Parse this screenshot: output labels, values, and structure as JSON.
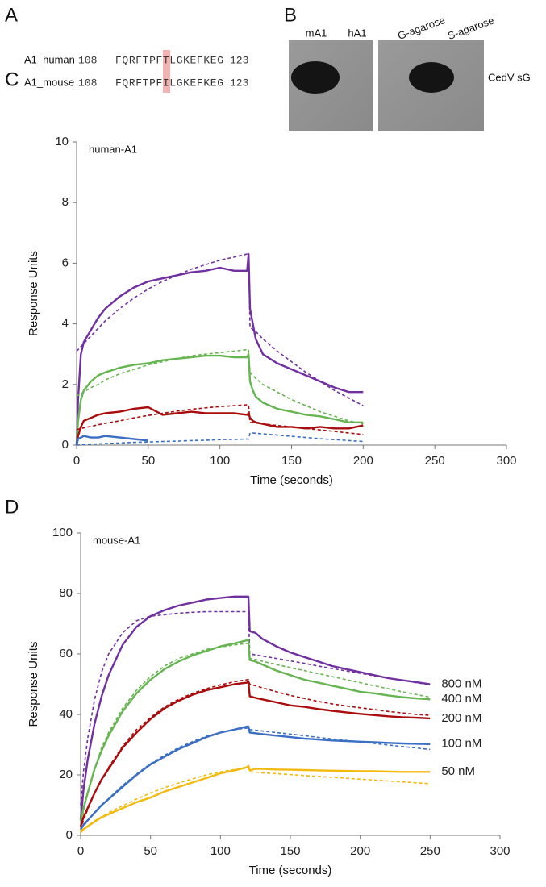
{
  "figure": {
    "panel_a": {
      "label": "A",
      "rows": [
        {
          "name": "A1_human",
          "start": "108",
          "sequence": "FQRFTPFTLGKEFKEG",
          "end": "123"
        },
        {
          "name": "A1_mouse",
          "start": "108",
          "sequence": "FQRFTPFILGKEFKEG",
          "end": "123"
        }
      ]
    },
    "panel_b": {
      "label": "B",
      "lanes": [
        "mA1",
        "hA1",
        "G-agarose",
        "S-agarose"
      ],
      "target": "CedV sG"
    }
  },
  "chart_data": [
    {
      "type": "line",
      "panel_label": "C",
      "annotation": "human-A1",
      "xlabel": "Time (seconds)",
      "ylabel": "Response Units",
      "xlim": [
        0,
        300
      ],
      "ylim": [
        0,
        10
      ],
      "xticks": [
        0,
        50,
        100,
        150,
        200,
        250,
        300
      ],
      "yticks": [
        0,
        2,
        4,
        6,
        8,
        10
      ],
      "x": [
        0,
        1,
        3,
        5,
        10,
        15,
        20,
        30,
        40,
        50,
        60,
        70,
        80,
        90,
        100,
        110,
        119,
        120,
        121,
        123,
        125,
        130,
        140,
        150,
        160,
        170,
        180,
        190,
        200
      ],
      "series": [
        {
          "color": "#7030a0",
          "values": [
            0,
            1.5,
            3.0,
            3.4,
            3.8,
            4.2,
            4.5,
            4.9,
            5.2,
            5.4,
            5.5,
            5.6,
            5.7,
            5.75,
            5.85,
            5.75,
            5.75,
            6.3,
            4.5,
            4.0,
            3.5,
            3.0,
            2.7,
            2.5,
            2.3,
            2.1,
            1.9,
            1.75,
            1.75
          ],
          "fit": [
            3.1,
            3.15,
            3.25,
            3.35,
            3.6,
            3.85,
            4.1,
            4.5,
            4.85,
            5.15,
            5.4,
            5.6,
            5.8,
            5.95,
            6.1,
            6.2,
            6.3,
            6.3,
            3.9,
            3.8,
            3.75,
            3.5,
            3.1,
            2.75,
            2.4,
            2.1,
            1.8,
            1.55,
            1.3
          ]
        },
        {
          "color": "#67b552",
          "values": [
            0,
            0.8,
            1.5,
            1.8,
            2.1,
            2.3,
            2.4,
            2.55,
            2.65,
            2.7,
            2.8,
            2.85,
            2.9,
            2.95,
            2.95,
            2.9,
            2.9,
            3.0,
            2.1,
            1.8,
            1.6,
            1.4,
            1.2,
            1.1,
            1.0,
            0.95,
            0.85,
            0.75,
            0.75
          ],
          "fit": [
            1.6,
            1.65,
            1.7,
            1.75,
            1.9,
            2.0,
            2.15,
            2.35,
            2.5,
            2.65,
            2.75,
            2.85,
            2.95,
            3.0,
            3.05,
            3.1,
            3.15,
            3.15,
            2.4,
            2.3,
            2.2,
            2.0,
            1.75,
            1.5,
            1.3,
            1.1,
            0.95,
            0.8,
            0.7
          ]
        },
        {
          "color": "#a80c0c",
          "values": [
            0,
            0.3,
            0.6,
            0.8,
            0.9,
            1.0,
            1.05,
            1.1,
            1.2,
            1.25,
            1.0,
            1.05,
            1.1,
            1.05,
            1.05,
            1.05,
            1.0,
            1.05,
            0.9,
            0.8,
            0.75,
            0.7,
            0.6,
            0.6,
            0.55,
            0.6,
            0.55,
            0.55,
            0.65
          ],
          "fit": [
            0.5,
            0.52,
            0.55,
            0.57,
            0.62,
            0.67,
            0.72,
            0.8,
            0.9,
            0.98,
            1.05,
            1.12,
            1.18,
            1.23,
            1.27,
            1.3,
            1.33,
            1.33,
            0.75,
            0.74,
            0.73,
            0.7,
            0.65,
            0.6,
            0.55,
            0.5,
            0.45,
            0.4,
            0.35
          ]
        },
        {
          "color": "#3a6fc4",
          "values": [
            0,
            0.2,
            0.25,
            0.3,
            0.25,
            0.25,
            0.3,
            0.25,
            0.2,
            0.15,
            null,
            null,
            null,
            null,
            null,
            null,
            null,
            null,
            null,
            null,
            null,
            null,
            null,
            null,
            null,
            null,
            null,
            null,
            null
          ],
          "fit": [
            0,
            0,
            0.01,
            0.02,
            0.03,
            0.04,
            0.05,
            0.07,
            0.09,
            0.1,
            0.12,
            0.13,
            0.15,
            0.16,
            0.18,
            0.19,
            0.2,
            0.2,
            0.4,
            0.4,
            0.39,
            0.37,
            0.33,
            0.29,
            0.25,
            0.21,
            0.18,
            0.15,
            0.12
          ]
        }
      ]
    },
    {
      "type": "line",
      "panel_label": "D",
      "annotation": "mouse-A1",
      "xlabel": "Time (seconds)",
      "ylabel": "Response Units",
      "xlim": [
        0,
        300
      ],
      "ylim": [
        0,
        100
      ],
      "xticks": [
        0,
        50,
        100,
        150,
        200,
        250,
        300
      ],
      "yticks": [
        0,
        20,
        40,
        60,
        80,
        100
      ],
      "x": [
        0,
        2,
        5,
        10,
        15,
        20,
        30,
        40,
        50,
        60,
        70,
        80,
        90,
        100,
        110,
        119,
        120,
        121,
        125,
        130,
        140,
        150,
        160,
        170,
        180,
        190,
        200,
        210,
        220,
        230,
        240,
        250
      ],
      "series": [
        {
          "name": "800 nM",
          "color": "#7030a0",
          "values": [
            5,
            15,
            25,
            37,
            46,
            53,
            63,
            69,
            72.5,
            74.5,
            76,
            77,
            78,
            78.5,
            79,
            79,
            79,
            67.5,
            67,
            65,
            62.5,
            60.5,
            59,
            57.5,
            56,
            55,
            54,
            53,
            52,
            51.3,
            50.7,
            50
          ],
          "fit": [
            10,
            21,
            32,
            45,
            54,
            60,
            67,
            71,
            72.5,
            73,
            73.5,
            73.8,
            74,
            74,
            74,
            74,
            74,
            60,
            59.7,
            59.3,
            58.5,
            57.7,
            56.9,
            56,
            55.2,
            54.4,
            53.6,
            52.8,
            52,
            51.3,
            50.5,
            49.8
          ]
        },
        {
          "name": "400 nM",
          "color": "#67b552",
          "values": [
            5,
            9,
            14,
            22,
            28,
            33,
            41,
            47,
            51.5,
            55,
            57.5,
            59.5,
            61,
            62.5,
            63.5,
            64.5,
            64.5,
            58,
            57.5,
            56.5,
            54.5,
            53,
            51.5,
            50.5,
            49.5,
            48.5,
            47.5,
            47,
            46.3,
            45.7,
            45.3,
            45
          ],
          "fit": [
            3,
            8,
            14,
            22,
            29,
            34,
            42,
            48,
            52.5,
            56,
            58.5,
            60,
            61.5,
            62.3,
            63,
            63.5,
            63.5,
            58.5,
            58.2,
            57.6,
            56.5,
            55.5,
            54.5,
            53.5,
            52.5,
            51.5,
            50.5,
            49.5,
            48.5,
            47.5,
            46.6,
            45.7
          ]
        },
        {
          "name": "200 nM",
          "color": "#a80c0c",
          "values": [
            3,
            6,
            9,
            14,
            18.5,
            22,
            29,
            34,
            38.5,
            42,
            44.5,
            46.5,
            48,
            49,
            50,
            50.5,
            51,
            46,
            45.5,
            45,
            44,
            43,
            42.5,
            41.8,
            41.2,
            40.7,
            40.2,
            39.8,
            39.4,
            39.1,
            38.9,
            38.7
          ],
          "fit": [
            2,
            5,
            8.5,
            14,
            18.5,
            22.5,
            29.5,
            35,
            39,
            42.5,
            45,
            47,
            48.5,
            49.8,
            50.8,
            51.5,
            51.5,
            50,
            49.5,
            48.8,
            47.5,
            46.3,
            45.3,
            44.3,
            43.5,
            42.8,
            42.2,
            41.6,
            41,
            40.5,
            40,
            39.7
          ]
        },
        {
          "name": "100 nM",
          "color": "#3a6fc4",
          "values": [
            2,
            3.5,
            5,
            7.5,
            10,
            12,
            16,
            20,
            23.5,
            26,
            28.5,
            30.5,
            32.5,
            34,
            35,
            36,
            36,
            34,
            33.8,
            33.5,
            33,
            32.5,
            32,
            31.7,
            31.4,
            31.2,
            31,
            30.8,
            30.6,
            30.4,
            30.3,
            30.2
          ],
          "fit": [
            2,
            3,
            4.8,
            7.5,
            10,
            12.2,
            16.5,
            20.3,
            23.7,
            26.5,
            29,
            31,
            32.8,
            34,
            35,
            35.5,
            35.5,
            35,
            34.8,
            34.5,
            34,
            33.5,
            33,
            32.4,
            31.9,
            31.4,
            30.9,
            30.4,
            29.9,
            29.4,
            28.9,
            28.4
          ]
        },
        {
          "name": "50 nM",
          "color": "#f2b90f",
          "values": [
            1,
            2,
            3,
            4.5,
            6,
            7,
            9,
            11,
            12.5,
            14.5,
            16,
            17.5,
            19,
            20.5,
            21.5,
            22.5,
            23,
            21.5,
            22,
            22,
            21.8,
            21.7,
            21.6,
            21.5,
            21.4,
            21.3,
            21.2,
            21.2,
            21.1,
            21,
            21,
            21
          ],
          "fit": [
            1.5,
            2.2,
            3.2,
            4.8,
            6.2,
            7.5,
            9.8,
            12,
            14,
            15.8,
            17.3,
            18.7,
            20,
            21,
            21.8,
            22.5,
            22.5,
            21,
            20.9,
            20.7,
            20.4,
            20.1,
            19.8,
            19.5,
            19.2,
            18.9,
            18.6,
            18.3,
            18,
            17.7,
            17.4,
            17.1
          ]
        }
      ]
    }
  ]
}
